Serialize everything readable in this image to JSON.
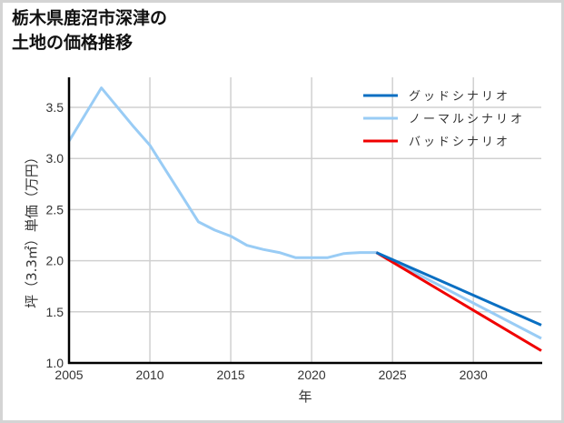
{
  "title_lines": [
    "栃木県鹿沼市深津の",
    "土地の価格推移"
  ],
  "chart_data": {
    "type": "line",
    "title": "栃木県鹿沼市深津の土地の価格推移",
    "xlabel": "年",
    "ylabel": "坪（3.3㎡）単価（万円）",
    "xlim": [
      2005,
      2034.2
    ],
    "ylim": [
      1.0,
      3.8
    ],
    "xticks": [
      2005,
      2010,
      2015,
      2020,
      2025,
      2030
    ],
    "yticks": [
      1.0,
      1.5,
      2.0,
      2.5,
      3.0,
      3.5
    ],
    "ytick_labels": [
      "1.0",
      "1.5",
      "2.0",
      "2.5",
      "3.0",
      "3.5"
    ],
    "grid": true,
    "legend_position": "upper right",
    "series": [
      {
        "name": "グッドシナリオ",
        "color": "#0a6fc2",
        "x": [
          2024,
          2034.2
        ],
        "values": [
          2.08,
          1.37
        ]
      },
      {
        "name": "ノーマルシナリオ",
        "color": "#99ccf5",
        "x": [
          2005,
          2006,
          2007,
          2008,
          2009,
          2010,
          2011,
          2012,
          2013,
          2014,
          2015,
          2016,
          2017,
          2018,
          2019,
          2020,
          2021,
          2022,
          2023,
          2024,
          2034.2
        ],
        "values": [
          3.17,
          3.43,
          3.69,
          3.5,
          3.31,
          3.13,
          2.88,
          2.63,
          2.38,
          2.3,
          2.24,
          2.15,
          2.11,
          2.08,
          2.03,
          2.03,
          2.03,
          2.07,
          2.08,
          2.08,
          1.24
        ]
      },
      {
        "name": "バッドシナリオ",
        "color": "#f00000",
        "x": [
          2024,
          2034.2
        ],
        "values": [
          2.08,
          1.12
        ]
      }
    ]
  }
}
